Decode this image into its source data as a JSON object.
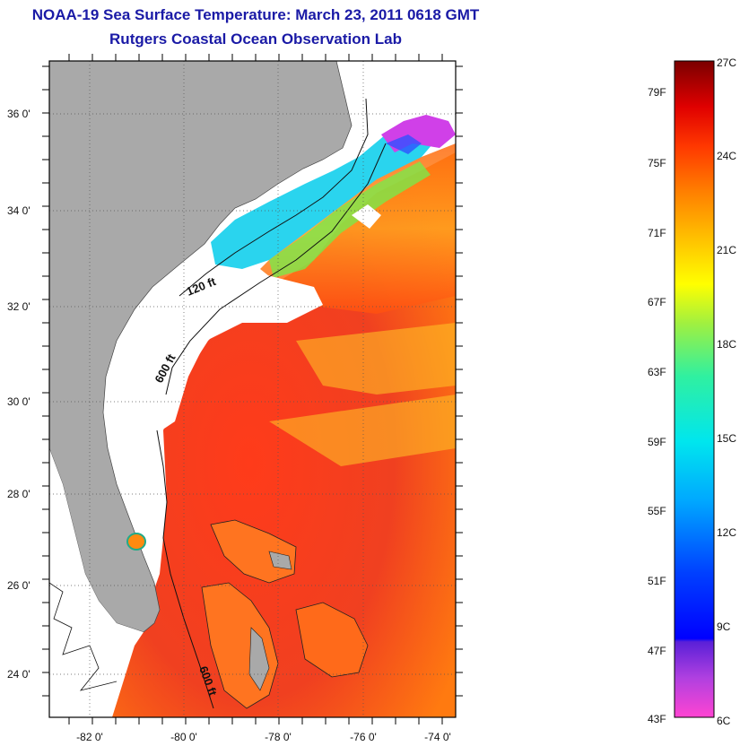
{
  "header": {
    "title": "NOAA-19 Sea Surface Temperature:  March 23, 2011 0618 GMT",
    "subtitle": "Rutgers Coastal Ocean Observation Lab"
  },
  "map": {
    "lat_ticks": [
      "36 0'",
      "34 0'",
      "32 0'",
      "30 0'",
      "28 0'",
      "26 0'",
      "24 0'"
    ],
    "lon_ticks": [
      "-82 0'",
      "-80 0'",
      "-78 0'",
      "-76 0'",
      "-74 0'"
    ],
    "isobaths": [
      "120 ft",
      "600 ft",
      "600 ft"
    ],
    "colors": {
      "land": "#a9a9a9",
      "no_data": "#ffffff",
      "warm": "#e8251c",
      "cool": "#29d1f0"
    }
  },
  "colorbar": {
    "fahrenheit": [
      "79F",
      "75F",
      "71F",
      "67F",
      "63F",
      "59F",
      "55F",
      "51F",
      "47F",
      "43F"
    ],
    "celsius": [
      "27C",
      "24C",
      "21C",
      "18C",
      "15C",
      "12C",
      "9C",
      "6C"
    ]
  }
}
